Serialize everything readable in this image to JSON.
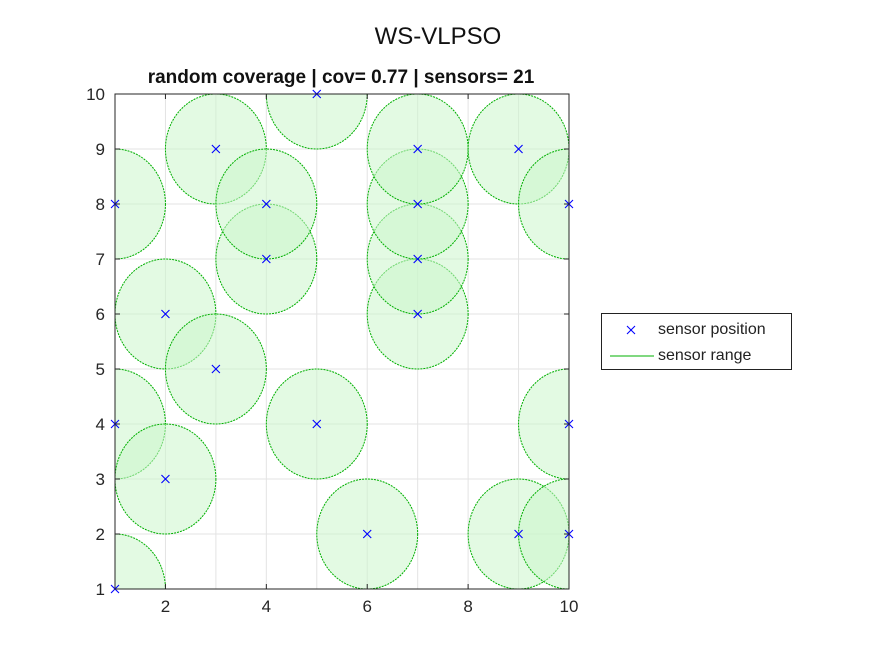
{
  "figure": {
    "suptitle": "WS-VLPSO"
  },
  "chart_data": {
    "type": "scatter",
    "title": "random coverage | cov= 0.77 | sensors= 21",
    "xlabel": "",
    "ylabel": "",
    "xlim": [
      1,
      10
    ],
    "ylim": [
      1,
      10
    ],
    "xticks": [
      2,
      4,
      6,
      8,
      10
    ],
    "yticks": [
      1,
      2,
      3,
      4,
      5,
      6,
      7,
      8,
      9,
      10
    ],
    "grid": true,
    "legend_position": "outside-right",
    "sensor_range": 1,
    "series": [
      {
        "name": "sensor position",
        "marker": "x",
        "color": "#0000ff",
        "points": [
          [
            1,
            1
          ],
          [
            1,
            4
          ],
          [
            1,
            8
          ],
          [
            2,
            3
          ],
          [
            2,
            6
          ],
          [
            3,
            5
          ],
          [
            3,
            9
          ],
          [
            4,
            7
          ],
          [
            4,
            8
          ],
          [
            5,
            4
          ],
          [
            5,
            10
          ],
          [
            6,
            2
          ],
          [
            7,
            6
          ],
          [
            7,
            7
          ],
          [
            7,
            8
          ],
          [
            7,
            9
          ],
          [
            9,
            2
          ],
          [
            9,
            9
          ],
          [
            10,
            2
          ],
          [
            10,
            4
          ],
          [
            10,
            8
          ]
        ]
      },
      {
        "name": "sensor range",
        "style": "line",
        "color": "#00b000",
        "fill": "#ccf5cc"
      }
    ]
  }
}
